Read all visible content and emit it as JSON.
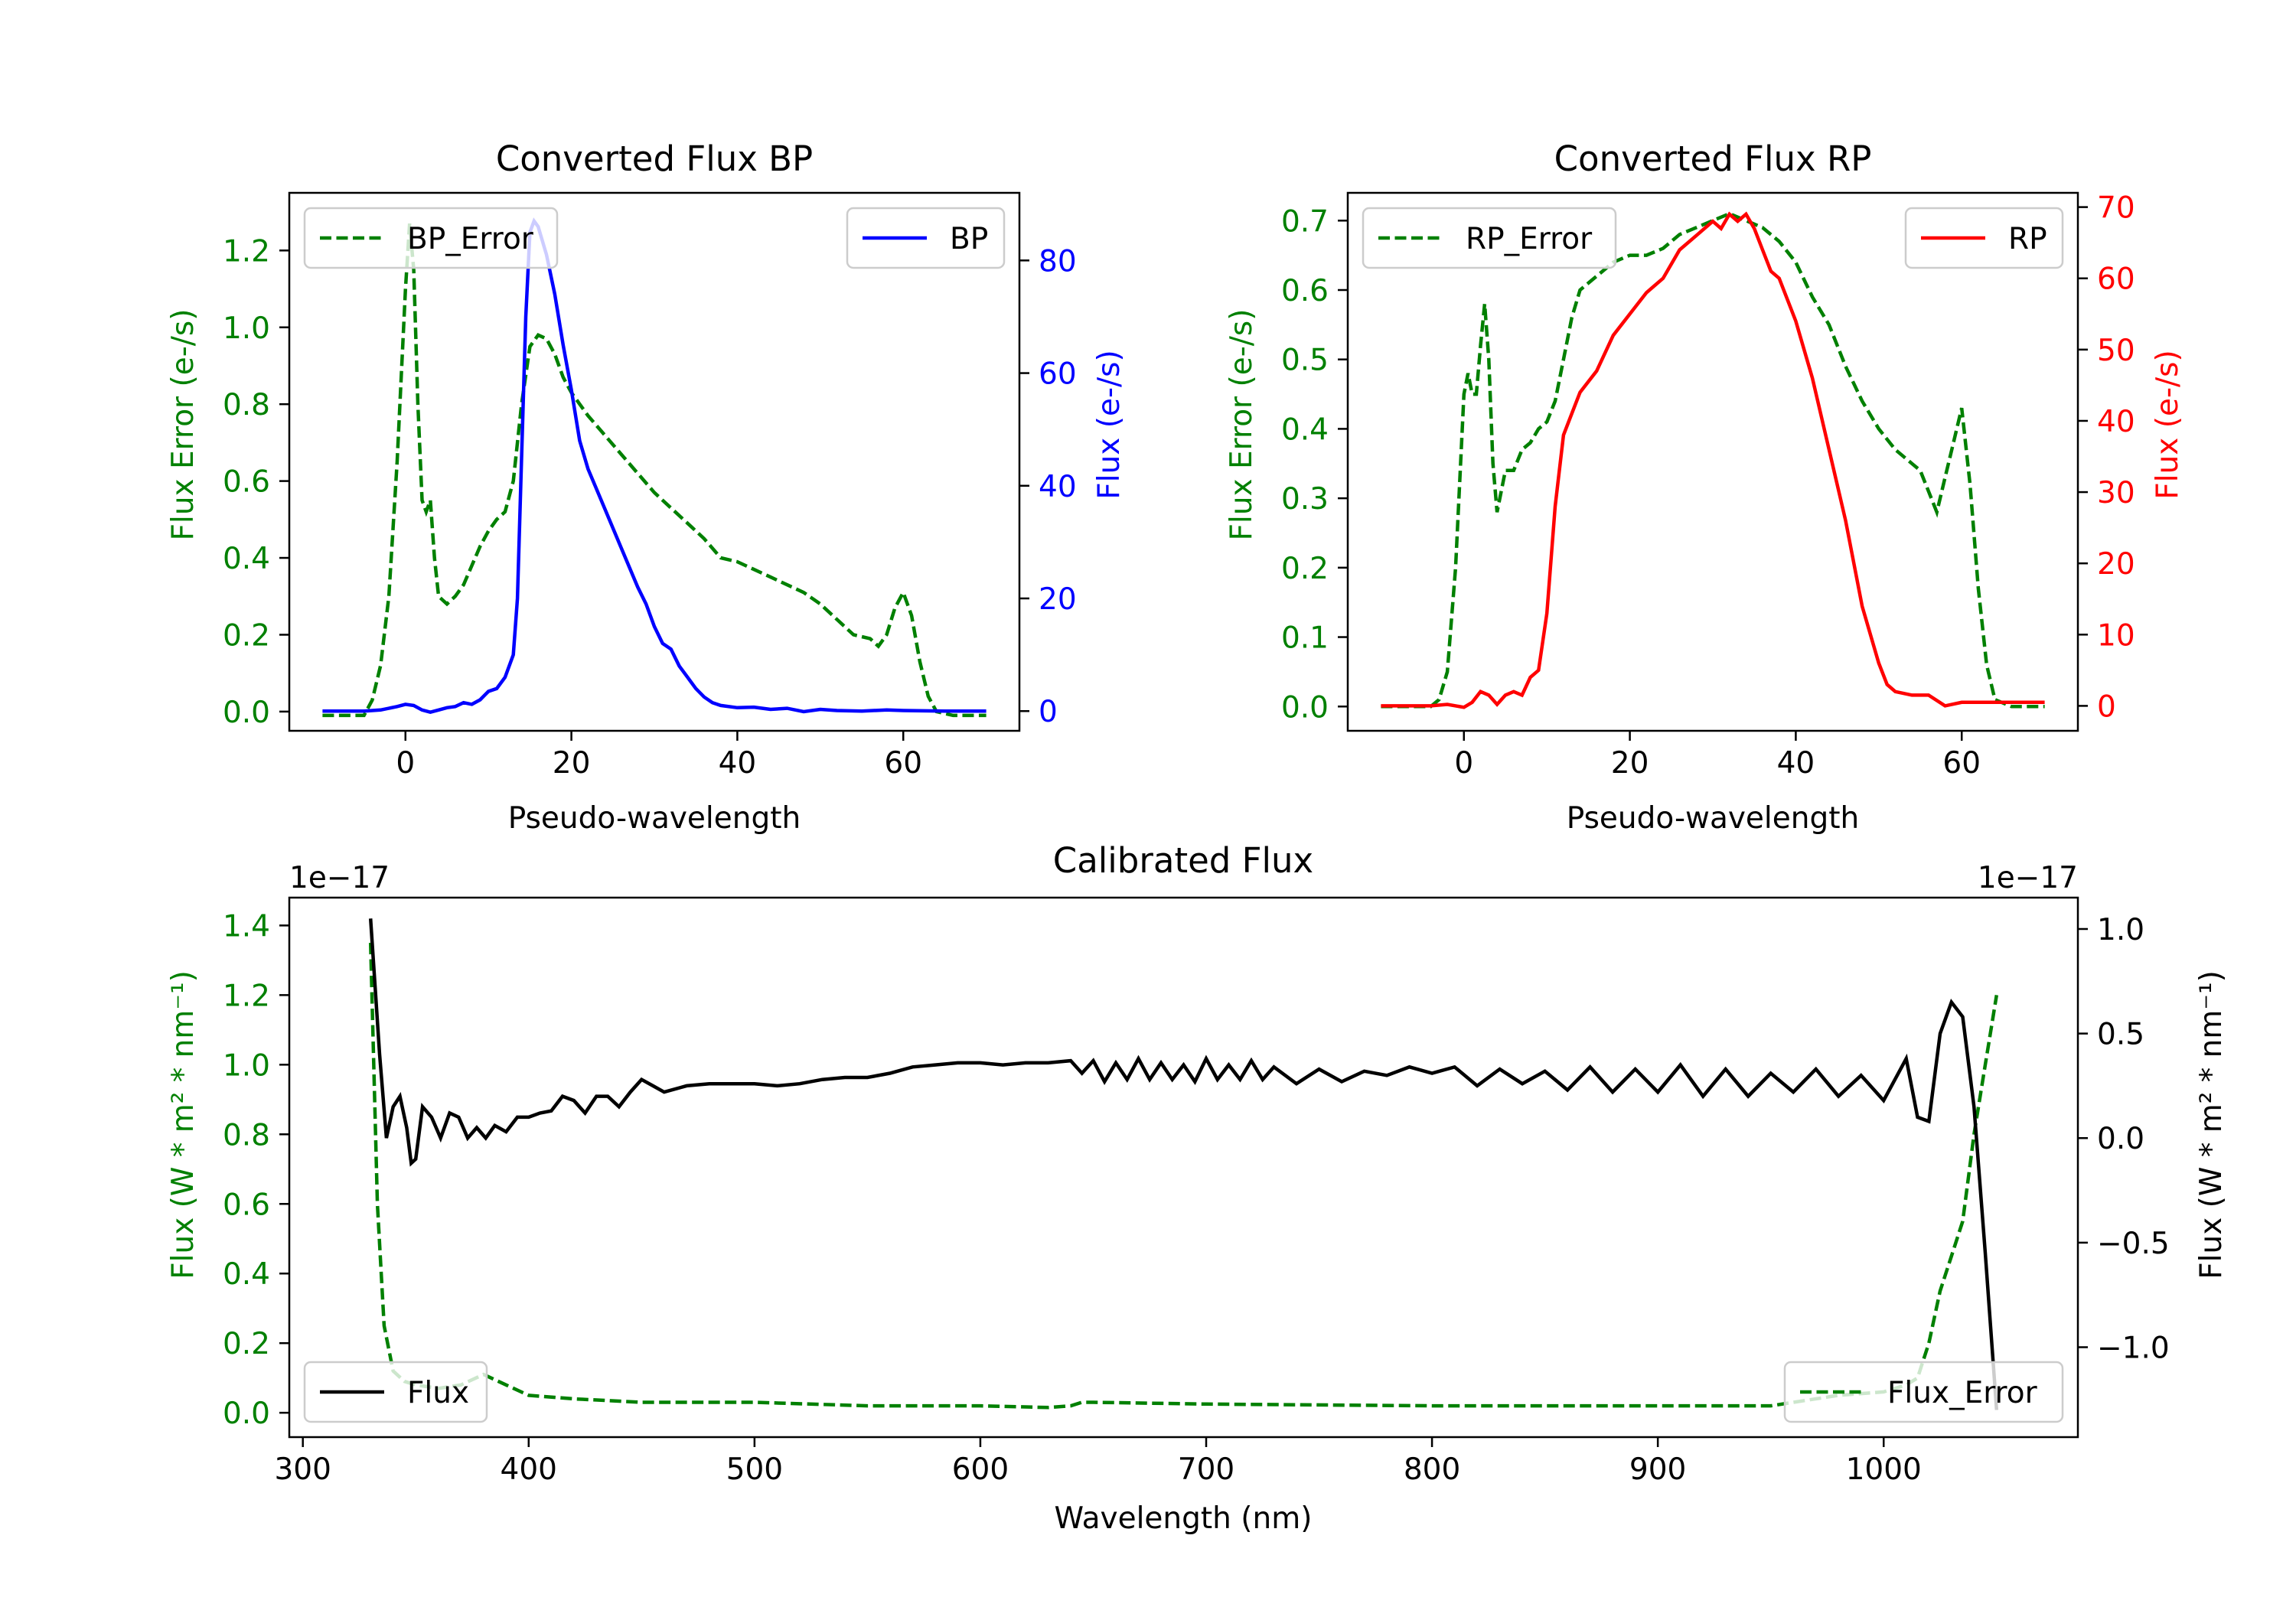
{
  "colors": {
    "green": "#008000",
    "blue": "#0000ff",
    "red": "#ff0000",
    "black": "#000000"
  },
  "chart_data": [
    {
      "id": "bp",
      "type": "line",
      "title": "Converted Flux BP",
      "xlabel": "Pseudo-wavelength",
      "ylabel_left": "Flux Error (e-/s)",
      "ylabel_right": "Flux (e-/s)",
      "xlim": [
        -14,
        74
      ],
      "ylim_left": [
        -0.05,
        1.35
      ],
      "ylim_right": [
        -3.5,
        92
      ],
      "xticks": [
        0,
        20,
        40,
        60
      ],
      "yticks_left": [
        0.0,
        0.2,
        0.4,
        0.6,
        0.8,
        1.0,
        1.2
      ],
      "yticks_right": [
        0,
        20,
        40,
        60,
        80
      ],
      "legend_left": {
        "label": "BP_Error",
        "position": "upper left"
      },
      "legend_right": {
        "label": "BP",
        "position": "upper right"
      },
      "series": [
        {
          "name": "BP_Error",
          "axis": "left",
          "color": "#008000",
          "style": "dashed",
          "x": [
            -10,
            -5,
            -4,
            -3,
            -2,
            -1,
            0,
            0.5,
            1,
            1.5,
            2,
            2.5,
            3,
            3.5,
            4,
            5,
            6,
            7,
            8,
            9,
            10,
            11,
            12,
            13,
            14,
            15,
            16,
            17,
            18,
            19,
            20,
            22,
            24,
            26,
            28,
            30,
            32,
            34,
            36,
            38,
            40,
            42,
            44,
            46,
            48,
            50,
            52,
            54,
            56,
            57,
            58,
            59,
            60,
            61,
            62,
            63,
            64,
            66,
            68,
            70
          ],
          "y": [
            -0.01,
            -0.01,
            0.03,
            0.12,
            0.3,
            0.65,
            1.1,
            1.27,
            1.15,
            0.8,
            0.55,
            0.52,
            0.55,
            0.4,
            0.3,
            0.28,
            0.3,
            0.33,
            0.38,
            0.43,
            0.47,
            0.5,
            0.52,
            0.6,
            0.8,
            0.95,
            0.98,
            0.97,
            0.93,
            0.87,
            0.83,
            0.77,
            0.72,
            0.67,
            0.62,
            0.57,
            0.53,
            0.49,
            0.45,
            0.4,
            0.39,
            0.37,
            0.35,
            0.33,
            0.31,
            0.28,
            0.24,
            0.2,
            0.19,
            0.17,
            0.2,
            0.27,
            0.31,
            0.25,
            0.13,
            0.04,
            0.0,
            -0.01,
            -0.01,
            -0.01
          ]
        },
        {
          "name": "BP",
          "axis": "right",
          "color": "#0000ff",
          "style": "solid",
          "x": [
            -10,
            -5,
            -3,
            -1,
            0,
            1,
            2,
            3,
            4,
            5,
            6,
            7,
            8,
            9,
            10,
            11,
            12,
            13,
            13.5,
            14,
            14.5,
            15,
            15.5,
            16,
            17,
            18,
            19,
            20,
            21,
            22,
            24,
            26,
            28,
            29,
            30,
            31,
            32,
            33,
            34,
            35,
            36,
            37,
            38,
            40,
            42,
            44,
            46,
            48,
            50,
            52,
            55,
            58,
            60,
            65,
            70
          ],
          "y": [
            0,
            0,
            0.2,
            0.8,
            1.2,
            1,
            0.2,
            -0.2,
            0.2,
            0.6,
            0.8,
            1.5,
            1.2,
            2,
            3.5,
            4,
            6,
            10,
            20,
            45,
            70,
            85,
            87,
            86,
            81,
            74,
            65,
            57,
            48,
            43,
            36,
            29,
            22,
            19,
            15,
            12,
            11,
            8,
            6,
            4,
            2.5,
            1.5,
            1,
            0.6,
            0.7,
            0.3,
            0.5,
            -0.1,
            0.3,
            0.1,
            0,
            0.2,
            0.1,
            0,
            0
          ]
        }
      ]
    },
    {
      "id": "rp",
      "type": "line",
      "title": "Converted Flux RP",
      "xlabel": "Pseudo-wavelength",
      "ylabel_left": "Flux Error (e-/s)",
      "ylabel_right": "Flux (e-/s)",
      "xlim": [
        -14,
        74
      ],
      "ylim_left": [
        -0.035,
        0.74
      ],
      "ylim_right": [
        -3.5,
        72
      ],
      "xticks": [
        0,
        20,
        40,
        60
      ],
      "yticks_left": [
        0.0,
        0.1,
        0.2,
        0.3,
        0.4,
        0.5,
        0.6,
        0.7
      ],
      "yticks_right": [
        0,
        10,
        20,
        30,
        40,
        50,
        60,
        70
      ],
      "legend_left": {
        "label": "RP_Error",
        "position": "upper left"
      },
      "legend_right": {
        "label": "RP",
        "position": "upper right"
      },
      "series": [
        {
          "name": "RP_Error",
          "axis": "left",
          "color": "#008000",
          "style": "dashed",
          "x": [
            -10,
            -4,
            -3,
            -2,
            -1,
            0,
            0.5,
            1,
            1.5,
            2,
            2.5,
            3,
            3.5,
            4,
            5,
            6,
            7,
            8,
            9,
            10,
            11,
            12,
            13,
            14,
            16,
            18,
            20,
            22,
            24,
            26,
            28,
            30,
            32,
            34,
            36,
            38,
            40,
            42,
            44,
            46,
            48,
            50,
            52,
            54,
            55,
            56,
            57,
            58,
            59,
            60,
            61,
            62,
            63,
            64,
            66,
            70
          ],
          "y": [
            0,
            0,
            0.01,
            0.05,
            0.2,
            0.45,
            0.48,
            0.45,
            0.45,
            0.52,
            0.58,
            0.5,
            0.35,
            0.28,
            0.34,
            0.34,
            0.37,
            0.38,
            0.4,
            0.41,
            0.44,
            0.5,
            0.56,
            0.6,
            0.62,
            0.64,
            0.65,
            0.65,
            0.66,
            0.68,
            0.69,
            0.7,
            0.71,
            0.7,
            0.69,
            0.67,
            0.64,
            0.59,
            0.55,
            0.49,
            0.44,
            0.4,
            0.37,
            0.35,
            0.34,
            0.31,
            0.28,
            0.33,
            0.38,
            0.43,
            0.32,
            0.17,
            0.06,
            0.01,
            0,
            0
          ]
        },
        {
          "name": "RP",
          "axis": "right",
          "color": "#ff0000",
          "style": "solid",
          "x": [
            -10,
            -4,
            -2,
            0,
            1,
            2,
            3,
            4,
            5,
            6,
            7,
            8,
            9,
            10,
            11,
            12,
            13,
            14,
            16,
            18,
            20,
            22,
            24,
            26,
            28,
            30,
            31,
            32,
            33,
            34,
            35,
            36,
            37,
            38,
            40,
            42,
            44,
            46,
            48,
            50,
            51,
            52,
            54,
            56,
            58,
            60,
            62,
            65,
            70
          ],
          "y": [
            0,
            0,
            0.2,
            -0.2,
            0.5,
            2,
            1.5,
            0.2,
            1.5,
            2,
            1.5,
            4,
            5,
            13,
            28,
            38,
            41,
            44,
            47,
            52,
            55,
            58,
            60,
            64,
            66,
            68,
            67,
            69,
            68,
            69,
            67,
            64,
            61,
            60,
            54,
            46,
            36,
            26,
            14,
            6,
            3,
            2,
            1.5,
            1.5,
            0,
            0.5,
            0.5,
            0.5,
            0.5
          ]
        }
      ]
    },
    {
      "id": "calibrated",
      "type": "line",
      "title": "Calibrated Flux",
      "xlabel": "Wavelength (nm)",
      "ylabel_left": "Flux (W * m² * nm⁻¹)",
      "ylabel_right": "Flux (W * m² * nm⁻¹)",
      "offset_left": "1e−17",
      "offset_right": "1e−17",
      "xlim": [
        294,
        1086
      ],
      "ylim_left": [
        -0.07,
        1.48
      ],
      "ylim_right": [
        -1.43,
        1.15
      ],
      "xticks": [
        300,
        400,
        500,
        600,
        700,
        800,
        900,
        1000
      ],
      "yticks_left": [
        0.0,
        0.2,
        0.4,
        0.6,
        0.8,
        1.0,
        1.2,
        1.4
      ],
      "yticks_right": [
        -1.0,
        -0.5,
        0.0,
        0.5,
        1.0
      ],
      "ytick_labels_right": [
        "−1.0",
        "−0.5",
        "0.0",
        "0.5",
        "1.0"
      ],
      "legend_left": {
        "label": "Flux",
        "position": "lower left"
      },
      "legend_right": {
        "label": "Flux_Error",
        "position": "lower right"
      },
      "series": [
        {
          "name": "Flux_Error",
          "axis": "left",
          "color": "#008000",
          "style": "dashed",
          "x": [
            330,
            333,
            336,
            340,
            345,
            350,
            360,
            370,
            380,
            390,
            400,
            420,
            450,
            500,
            550,
            600,
            630,
            640,
            645,
            650,
            700,
            800,
            900,
            950,
            980,
            1000,
            1010,
            1015,
            1020,
            1025,
            1030,
            1035,
            1040,
            1045,
            1050
          ],
          "y": [
            1.35,
            0.6,
            0.25,
            0.12,
            0.09,
            0.08,
            0.07,
            0.08,
            0.11,
            0.08,
            0.05,
            0.04,
            0.03,
            0.03,
            0.02,
            0.02,
            0.015,
            0.02,
            0.03,
            0.03,
            0.025,
            0.02,
            0.02,
            0.02,
            0.05,
            0.06,
            0.08,
            0.1,
            0.2,
            0.35,
            0.45,
            0.55,
            0.8,
            1.0,
            1.2
          ]
        },
        {
          "name": "Flux",
          "axis": "right",
          "color": "#000000",
          "style": "solid",
          "x": [
            330,
            334,
            337,
            340,
            343,
            346,
            348,
            350,
            353,
            357,
            361,
            365,
            369,
            373,
            377,
            381,
            385,
            390,
            395,
            400,
            405,
            410,
            415,
            420,
            425,
            430,
            435,
            440,
            445,
            450,
            455,
            460,
            470,
            480,
            490,
            500,
            510,
            520,
            530,
            540,
            550,
            560,
            570,
            580,
            590,
            600,
            610,
            620,
            630,
            640,
            645,
            650,
            655,
            660,
            665,
            670,
            675,
            680,
            685,
            690,
            695,
            700,
            705,
            710,
            715,
            720,
            725,
            730,
            740,
            750,
            760,
            770,
            780,
            790,
            800,
            810,
            820,
            830,
            840,
            850,
            860,
            870,
            880,
            890,
            900,
            910,
            920,
            930,
            940,
            950,
            960,
            970,
            980,
            990,
            1000,
            1010,
            1015,
            1020,
            1025,
            1030,
            1035,
            1040,
            1045,
            1050
          ],
          "y": [
            1.05,
            0.4,
            0.0,
            0.15,
            0.2,
            0.05,
            -0.12,
            -0.1,
            0.15,
            0.1,
            0.0,
            0.12,
            0.1,
            0.0,
            0.05,
            0.0,
            0.06,
            0.03,
            0.1,
            0.1,
            0.12,
            0.13,
            0.2,
            0.18,
            0.12,
            0.2,
            0.2,
            0.15,
            0.22,
            0.28,
            0.25,
            0.22,
            0.25,
            0.26,
            0.26,
            0.26,
            0.25,
            0.26,
            0.28,
            0.29,
            0.29,
            0.31,
            0.34,
            0.35,
            0.36,
            0.36,
            0.35,
            0.36,
            0.36,
            0.37,
            0.31,
            0.37,
            0.27,
            0.36,
            0.28,
            0.38,
            0.28,
            0.36,
            0.28,
            0.35,
            0.27,
            0.38,
            0.28,
            0.35,
            0.28,
            0.37,
            0.28,
            0.34,
            0.26,
            0.33,
            0.27,
            0.32,
            0.3,
            0.34,
            0.31,
            0.34,
            0.25,
            0.33,
            0.26,
            0.32,
            0.23,
            0.34,
            0.22,
            0.33,
            0.22,
            0.35,
            0.2,
            0.33,
            0.2,
            0.31,
            0.22,
            0.33,
            0.2,
            0.3,
            0.18,
            0.38,
            0.1,
            0.08,
            0.5,
            0.65,
            0.58,
            0.15,
            -0.55,
            -1.3
          ]
        }
      ]
    }
  ]
}
